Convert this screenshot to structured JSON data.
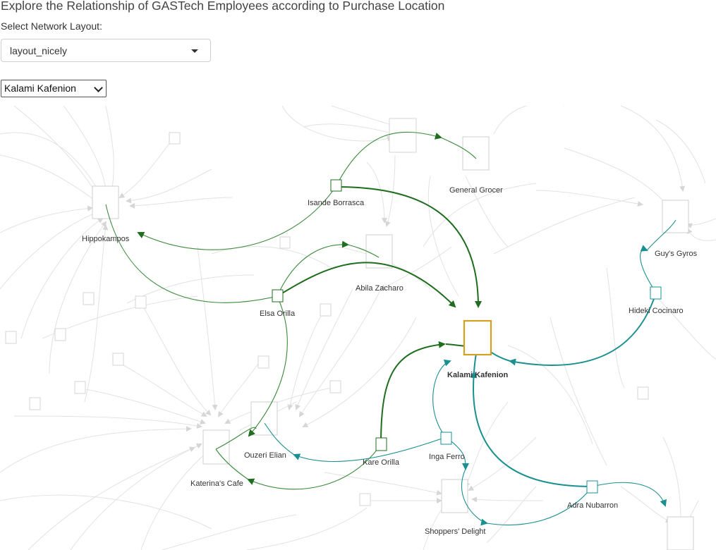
{
  "header": {
    "title": "Explore the Relationship of GASTech Employees according to Purchase Location",
    "layout_label": "Select Network Layout:"
  },
  "layout_select": {
    "value": "layout_nicely"
  },
  "node_select": {
    "value": "Kalami Kafenion"
  },
  "colors": {
    "selected_node": "#d4a020",
    "dark_green": "#1f6d1f",
    "green": "#3a8a3a",
    "teal": "#1a9090",
    "faded": "#d8d8d8"
  },
  "network": {
    "selected": "Kalami Kafenion",
    "locations": [
      "Hippokampos",
      "General Grocer",
      "Guy's Gyros",
      "Abila Zacharo",
      "Kalami Kafenion",
      "Ouzeri Elian",
      "Katerina's Cafe",
      "Shoppers' Delight"
    ],
    "employees": [
      "Isande Borrasca",
      "Elsa Orilla",
      "Hideki Cocinaro",
      "Kare Orilla",
      "Inga Ferro",
      "Adra Nubarron"
    ]
  }
}
